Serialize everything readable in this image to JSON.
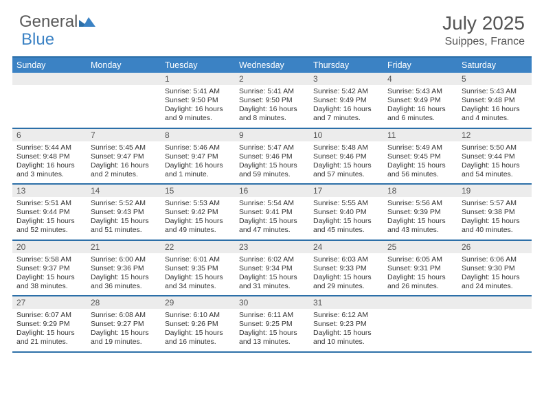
{
  "brand": {
    "part1": "General",
    "part2": "Blue"
  },
  "title": "July 2025",
  "location": "Suippes, France",
  "colors": {
    "header_bg": "#3b82c4",
    "border": "#2c6fa8",
    "daynum_bg": "#ececec",
    "text": "#333333",
    "title_text": "#555555"
  },
  "daynames": [
    "Sunday",
    "Monday",
    "Tuesday",
    "Wednesday",
    "Thursday",
    "Friday",
    "Saturday"
  ],
  "weeks": [
    [
      null,
      null,
      {
        "n": "1",
        "sr": "5:41 AM",
        "ss": "9:50 PM",
        "dl": "16 hours and 9 minutes."
      },
      {
        "n": "2",
        "sr": "5:41 AM",
        "ss": "9:50 PM",
        "dl": "16 hours and 8 minutes."
      },
      {
        "n": "3",
        "sr": "5:42 AM",
        "ss": "9:49 PM",
        "dl": "16 hours and 7 minutes."
      },
      {
        "n": "4",
        "sr": "5:43 AM",
        "ss": "9:49 PM",
        "dl": "16 hours and 6 minutes."
      },
      {
        "n": "5",
        "sr": "5:43 AM",
        "ss": "9:48 PM",
        "dl": "16 hours and 4 minutes."
      }
    ],
    [
      {
        "n": "6",
        "sr": "5:44 AM",
        "ss": "9:48 PM",
        "dl": "16 hours and 3 minutes."
      },
      {
        "n": "7",
        "sr": "5:45 AM",
        "ss": "9:47 PM",
        "dl": "16 hours and 2 minutes."
      },
      {
        "n": "8",
        "sr": "5:46 AM",
        "ss": "9:47 PM",
        "dl": "16 hours and 1 minute."
      },
      {
        "n": "9",
        "sr": "5:47 AM",
        "ss": "9:46 PM",
        "dl": "15 hours and 59 minutes."
      },
      {
        "n": "10",
        "sr": "5:48 AM",
        "ss": "9:46 PM",
        "dl": "15 hours and 57 minutes."
      },
      {
        "n": "11",
        "sr": "5:49 AM",
        "ss": "9:45 PM",
        "dl": "15 hours and 56 minutes."
      },
      {
        "n": "12",
        "sr": "5:50 AM",
        "ss": "9:44 PM",
        "dl": "15 hours and 54 minutes."
      }
    ],
    [
      {
        "n": "13",
        "sr": "5:51 AM",
        "ss": "9:44 PM",
        "dl": "15 hours and 52 minutes."
      },
      {
        "n": "14",
        "sr": "5:52 AM",
        "ss": "9:43 PM",
        "dl": "15 hours and 51 minutes."
      },
      {
        "n": "15",
        "sr": "5:53 AM",
        "ss": "9:42 PM",
        "dl": "15 hours and 49 minutes."
      },
      {
        "n": "16",
        "sr": "5:54 AM",
        "ss": "9:41 PM",
        "dl": "15 hours and 47 minutes."
      },
      {
        "n": "17",
        "sr": "5:55 AM",
        "ss": "9:40 PM",
        "dl": "15 hours and 45 minutes."
      },
      {
        "n": "18",
        "sr": "5:56 AM",
        "ss": "9:39 PM",
        "dl": "15 hours and 43 minutes."
      },
      {
        "n": "19",
        "sr": "5:57 AM",
        "ss": "9:38 PM",
        "dl": "15 hours and 40 minutes."
      }
    ],
    [
      {
        "n": "20",
        "sr": "5:58 AM",
        "ss": "9:37 PM",
        "dl": "15 hours and 38 minutes."
      },
      {
        "n": "21",
        "sr": "6:00 AM",
        "ss": "9:36 PM",
        "dl": "15 hours and 36 minutes."
      },
      {
        "n": "22",
        "sr": "6:01 AM",
        "ss": "9:35 PM",
        "dl": "15 hours and 34 minutes."
      },
      {
        "n": "23",
        "sr": "6:02 AM",
        "ss": "9:34 PM",
        "dl": "15 hours and 31 minutes."
      },
      {
        "n": "24",
        "sr": "6:03 AM",
        "ss": "9:33 PM",
        "dl": "15 hours and 29 minutes."
      },
      {
        "n": "25",
        "sr": "6:05 AM",
        "ss": "9:31 PM",
        "dl": "15 hours and 26 minutes."
      },
      {
        "n": "26",
        "sr": "6:06 AM",
        "ss": "9:30 PM",
        "dl": "15 hours and 24 minutes."
      }
    ],
    [
      {
        "n": "27",
        "sr": "6:07 AM",
        "ss": "9:29 PM",
        "dl": "15 hours and 21 minutes."
      },
      {
        "n": "28",
        "sr": "6:08 AM",
        "ss": "9:27 PM",
        "dl": "15 hours and 19 minutes."
      },
      {
        "n": "29",
        "sr": "6:10 AM",
        "ss": "9:26 PM",
        "dl": "15 hours and 16 minutes."
      },
      {
        "n": "30",
        "sr": "6:11 AM",
        "ss": "9:25 PM",
        "dl": "15 hours and 13 minutes."
      },
      {
        "n": "31",
        "sr": "6:12 AM",
        "ss": "9:23 PM",
        "dl": "15 hours and 10 minutes."
      },
      null,
      null
    ]
  ],
  "labels": {
    "sunrise": "Sunrise:",
    "sunset": "Sunset:",
    "daylight": "Daylight:"
  }
}
